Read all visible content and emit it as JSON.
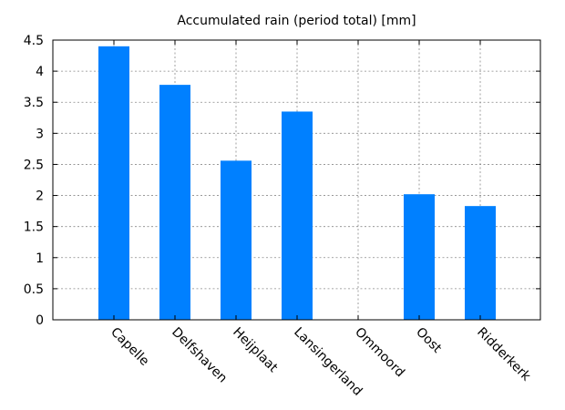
{
  "chart_data": {
    "type": "bar",
    "title": "Accumulated rain (period total) [mm]",
    "xlabel": "",
    "ylabel": "",
    "categories": [
      "Capelle",
      "Delfshaven",
      "Heijplaat",
      "Lansingerland",
      "Ommoord",
      "Oost",
      "Ridderkerk"
    ],
    "values": [
      4.4,
      3.78,
      2.56,
      3.35,
      0,
      2.02,
      1.83
    ],
    "ylim": [
      0,
      4.5
    ],
    "yticks": [
      0,
      0.5,
      1,
      1.5,
      2,
      2.5,
      3,
      3.5,
      4,
      4.5
    ],
    "ytick_labels": [
      "0",
      "0.5",
      "1",
      "1.5",
      "2",
      "2.5",
      "3",
      "3.5",
      "4",
      "4.5"
    ],
    "grid": true,
    "bar_color": "#0080ff"
  }
}
